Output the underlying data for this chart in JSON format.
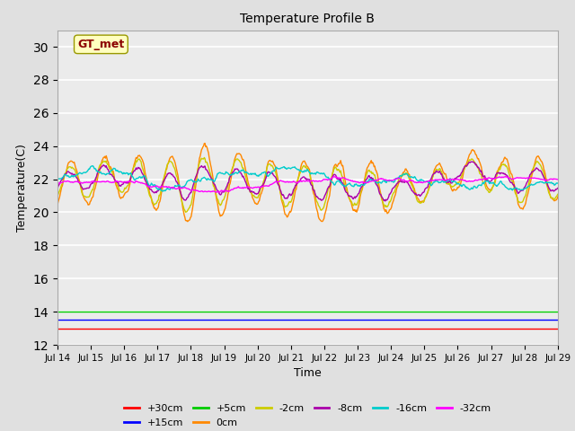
{
  "title": "Temperature Profile B",
  "xlabel": "Time",
  "ylabel": "Temperature(C)",
  "ylim": [
    12,
    31
  ],
  "yticks": [
    12,
    14,
    16,
    18,
    20,
    22,
    24,
    26,
    28,
    30
  ],
  "n_points": 720,
  "annotation_text": "GT_met",
  "annotation_color": "#8B0000",
  "annotation_bg": "#FFFFC0",
  "series_colors": {
    "+30cm": "#FF0000",
    "+15cm": "#0000FF",
    "+5cm": "#00CC00",
    "0cm": "#FF8800",
    "-2cm": "#CCCC00",
    "-8cm": "#AA00AA",
    "-16cm": "#00CCCC",
    "-32cm": "#FF00FF"
  },
  "xtick_labels": [
    "Jul 14",
    "Jul 15",
    "Jul 16",
    "Jul 17",
    "Jul 18",
    "Jul 19",
    "Jul 20",
    "Jul 21",
    "Jul 22",
    "Jul 23",
    "Jul 24",
    "Jul 25",
    "Jul 26",
    "Jul 27",
    "Jul 28",
    "Jul 29"
  ],
  "bg_color": "#E0E0E0",
  "plot_bg_color": "#EBEBEB"
}
